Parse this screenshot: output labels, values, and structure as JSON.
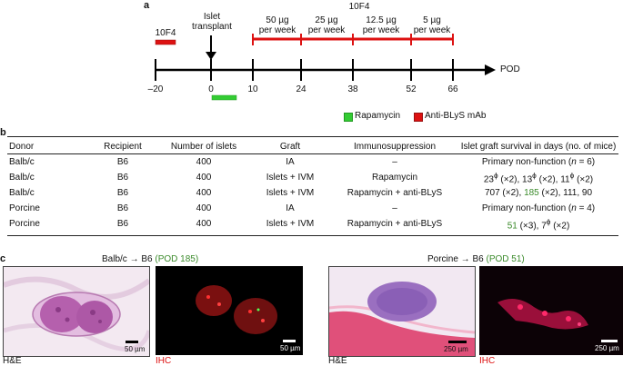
{
  "panel_a": {
    "letter": "a",
    "top_label": "10F4",
    "left_bar_label": "10F4",
    "transplant_label_line1": "Islet",
    "transplant_label_line2": "transplant",
    "dose_labels": [
      {
        "line1": "50 µg",
        "line2": "per week"
      },
      {
        "line1": "25 µg",
        "line2": "per week"
      },
      {
        "line1": "12.5 µg",
        "line2": "per week"
      },
      {
        "line1": "5 µg",
        "line2": "per week"
      }
    ],
    "axis_label": "POD",
    "ticks": [
      "–20",
      "0",
      "10",
      "24",
      "38",
      "52",
      "66"
    ],
    "legend": [
      {
        "label": "Rapamycin",
        "color": "#33cc33"
      },
      {
        "label": "Anti-BLyS mAb",
        "color": "#dd1111"
      }
    ],
    "colors": {
      "rapamycin": "#33cc33",
      "anti_blys": "#dd1111",
      "tenf4_small": "#dd1111"
    }
  },
  "panel_b": {
    "letter": "b",
    "headers": [
      "Donor",
      "Recipient",
      "Number of islets",
      "Graft",
      "Immunosuppression",
      "Islet graft survival in days (no. of mice)"
    ],
    "rows": [
      {
        "donor": "Balb/c",
        "recipient": "B6",
        "islets": "400",
        "graft": "IA",
        "immuno": "–",
        "survival_pre": "Primary non-function (",
        "survival_n": "n",
        "survival_post": " = 6)",
        "survival_green": ""
      },
      {
        "donor": "Balb/c",
        "recipient": "B6",
        "islets": "400",
        "graft": "Islets + IVM",
        "immuno": "Rapamycin",
        "survival_pre": "",
        "survival_n": "",
        "survival_post": "",
        "survival_green": ""
      },
      {
        "donor": "Balb/c",
        "recipient": "B6",
        "islets": "400",
        "graft": "Islets + IVM",
        "immuno": "Rapamycin + anti-BLyS",
        "survival_pre": "707 (×2), ",
        "survival_n": "",
        "survival_post": " (×2), 111, 90",
        "survival_green": "185"
      },
      {
        "donor": "Porcine",
        "recipient": "B6",
        "islets": "400",
        "graft": "IA",
        "immuno": "–",
        "survival_pre": "Primary non-function (",
        "survival_n": "n",
        "survival_post": " = 4)",
        "survival_green": ""
      },
      {
        "donor": "Porcine",
        "recipient": "B6",
        "islets": "400",
        "graft": "Islets + IVM",
        "immuno": "Rapamycin + anti-BLyS",
        "survival_pre": "",
        "survival_n": "",
        "survival_post": " (×3), 7",
        "survival_green": "51"
      }
    ],
    "row2_survival": {
      "a": "23",
      "a_sup": "ϕ",
      "a_rest": " (×2), 13",
      "b_sup": "ϕ",
      "b_rest": " (×2), 11",
      "c_sup": "ϕ",
      "c_rest": " (×2)"
    },
    "row5_sup": "ϕ",
    "row5_end": " (×2)"
  },
  "panel_c": {
    "letter": "c",
    "left_title_pre": "Balb/c → B6 ",
    "left_title_green": "(POD 185)",
    "right_title_pre": "Porcine → B6 ",
    "right_title_green": "(POD 51)",
    "labels": {
      "he1": "H&E",
      "ihc1": "IHC",
      "he2": "H&E",
      "ihc2": "IHC"
    },
    "scales": {
      "s1": "50 µm",
      "s2": "50 µm",
      "s3": "250 µm",
      "s4": "250 µm"
    },
    "colors": {
      "ihc_label": "#dd1111"
    }
  }
}
